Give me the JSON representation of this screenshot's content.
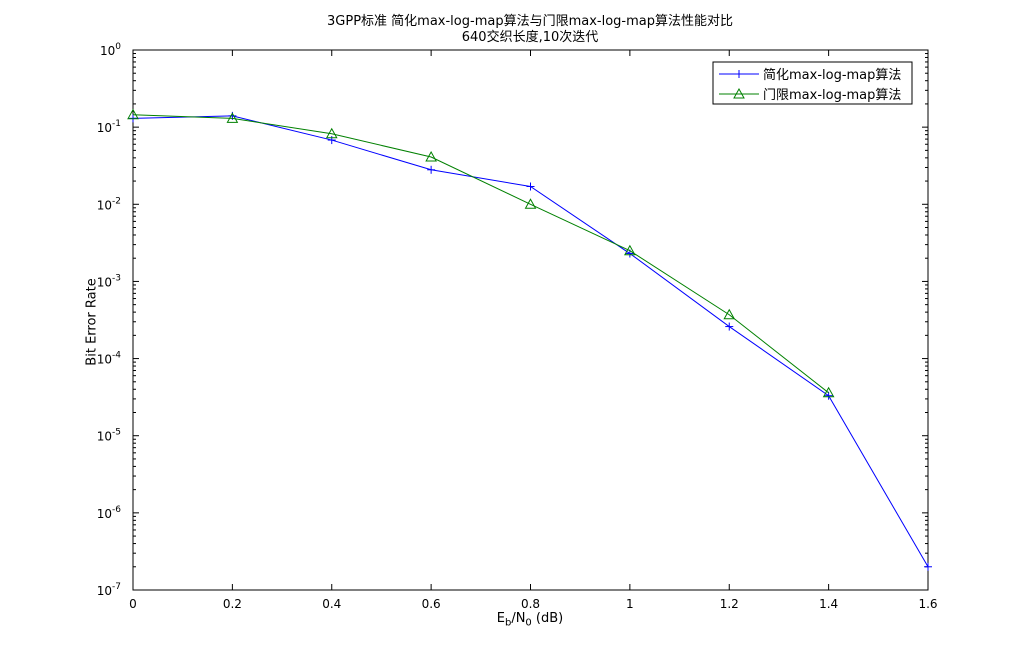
{
  "chart_data": {
    "type": "line",
    "title": "3GPP标准 简化max-log-map算法与门限max-log-map算法性能对比",
    "subtitle": "640交织长度,10次迭代",
    "xlabel": {
      "base": "E",
      "sub1": "b",
      "mid": "/N",
      "sub2": "0",
      "tail": " (dB)"
    },
    "ylabel": "Bit Error Rate",
    "xlim": [
      0,
      1.6
    ],
    "ylim": [
      1e-07,
      1
    ],
    "yscale": "log",
    "x_ticks": [
      "0",
      "0.2",
      "0.4",
      "0.6",
      "0.8",
      "1",
      "1.2",
      "1.4",
      "1.6"
    ],
    "y_tick_exponents": [
      "0",
      "-1",
      "-2",
      "-3",
      "-4",
      "-5",
      "-6",
      "-7"
    ],
    "y_tick_base": "10",
    "grid": false,
    "legend_position": "top-right",
    "series": [
      {
        "name": "简化max-log-map算法",
        "color": "#0000ff",
        "marker": "plus",
        "x": [
          0,
          0.2,
          0.4,
          0.6,
          0.8,
          1.0,
          1.2,
          1.4,
          1.6
        ],
        "y": [
          0.13,
          0.14,
          0.068,
          0.028,
          0.017,
          0.0023,
          0.00026,
          3.3e-05,
          2e-07
        ]
      },
      {
        "name": "门限max-log-map算法",
        "color": "#008000",
        "marker": "triangle",
        "x": [
          0,
          0.2,
          0.4,
          0.6,
          0.8,
          1.0,
          1.2,
          1.4
        ],
        "y": [
          0.145,
          0.13,
          0.082,
          0.041,
          0.01,
          0.0025,
          0.00037,
          3.6e-05
        ]
      }
    ]
  }
}
